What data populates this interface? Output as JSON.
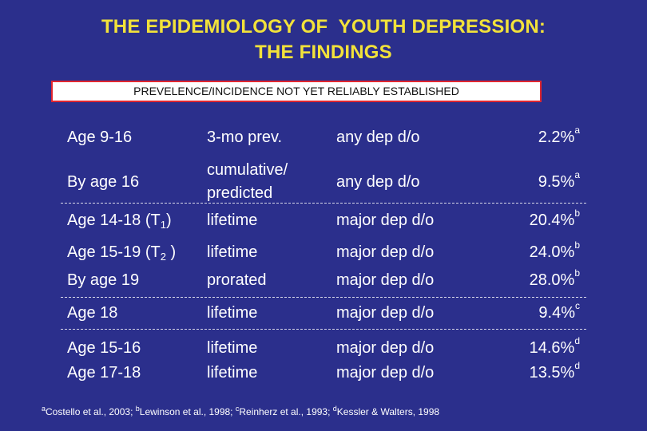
{
  "title": {
    "line1": "THE EPIDEMIOLOGY OF  YOUTH DEPRESSION:",
    "line2": "THE FINDINGS"
  },
  "banner": "PREVELENCE/INCIDENCE NOT YET RELIABLY ESTABLISHED",
  "rows": [
    {
      "age": "Age 9-16",
      "measure": "3-mo prev.",
      "condition": "any dep d/o",
      "value": "2.2%",
      "ref": "a"
    },
    {
      "age": "By age 16",
      "measure1": "cumulative/",
      "measure2": "predicted",
      "condition": "any dep d/o",
      "value": "9.5%",
      "ref": "a"
    },
    {
      "age_pre": "Age 14-18 (T",
      "age_sub": "1",
      "age_post": ")",
      "measure": "lifetime",
      "condition": "major dep d/o",
      "value": "20.4%",
      "ref": "b"
    },
    {
      "age_pre": "Age 15-19 (T",
      "age_sub": "2",
      "age_post": " )",
      "measure": "lifetime",
      "condition": "major dep d/o",
      "value": "24.0%",
      "ref": "b"
    },
    {
      "age": "By age 19",
      "measure": "prorated",
      "condition": "major dep d/o",
      "value": "28.0%",
      "ref": "b"
    },
    {
      "age": "Age 18",
      "measure": "lifetime",
      "condition": "major dep d/o",
      "value": "9.4%",
      "ref": "c"
    },
    {
      "age": "Age 15-16",
      "measure": "lifetime",
      "condition": "major dep d/o",
      "value": "14.6%",
      "ref": "d"
    },
    {
      "age": "Age 17-18",
      "measure": "lifetime",
      "condition": "major dep d/o",
      "value": "13.5%",
      "ref": "d"
    }
  ],
  "footnote": [
    {
      "mark": "a",
      "text": "Costello et al., 2003; "
    },
    {
      "mark": "b",
      "text": "Lewinson et al., 1998; "
    },
    {
      "mark": "c",
      "text": "Reinherz et al., 1993; "
    },
    {
      "mark": "d",
      "text": "Kessler & Walters, 1998"
    }
  ]
}
